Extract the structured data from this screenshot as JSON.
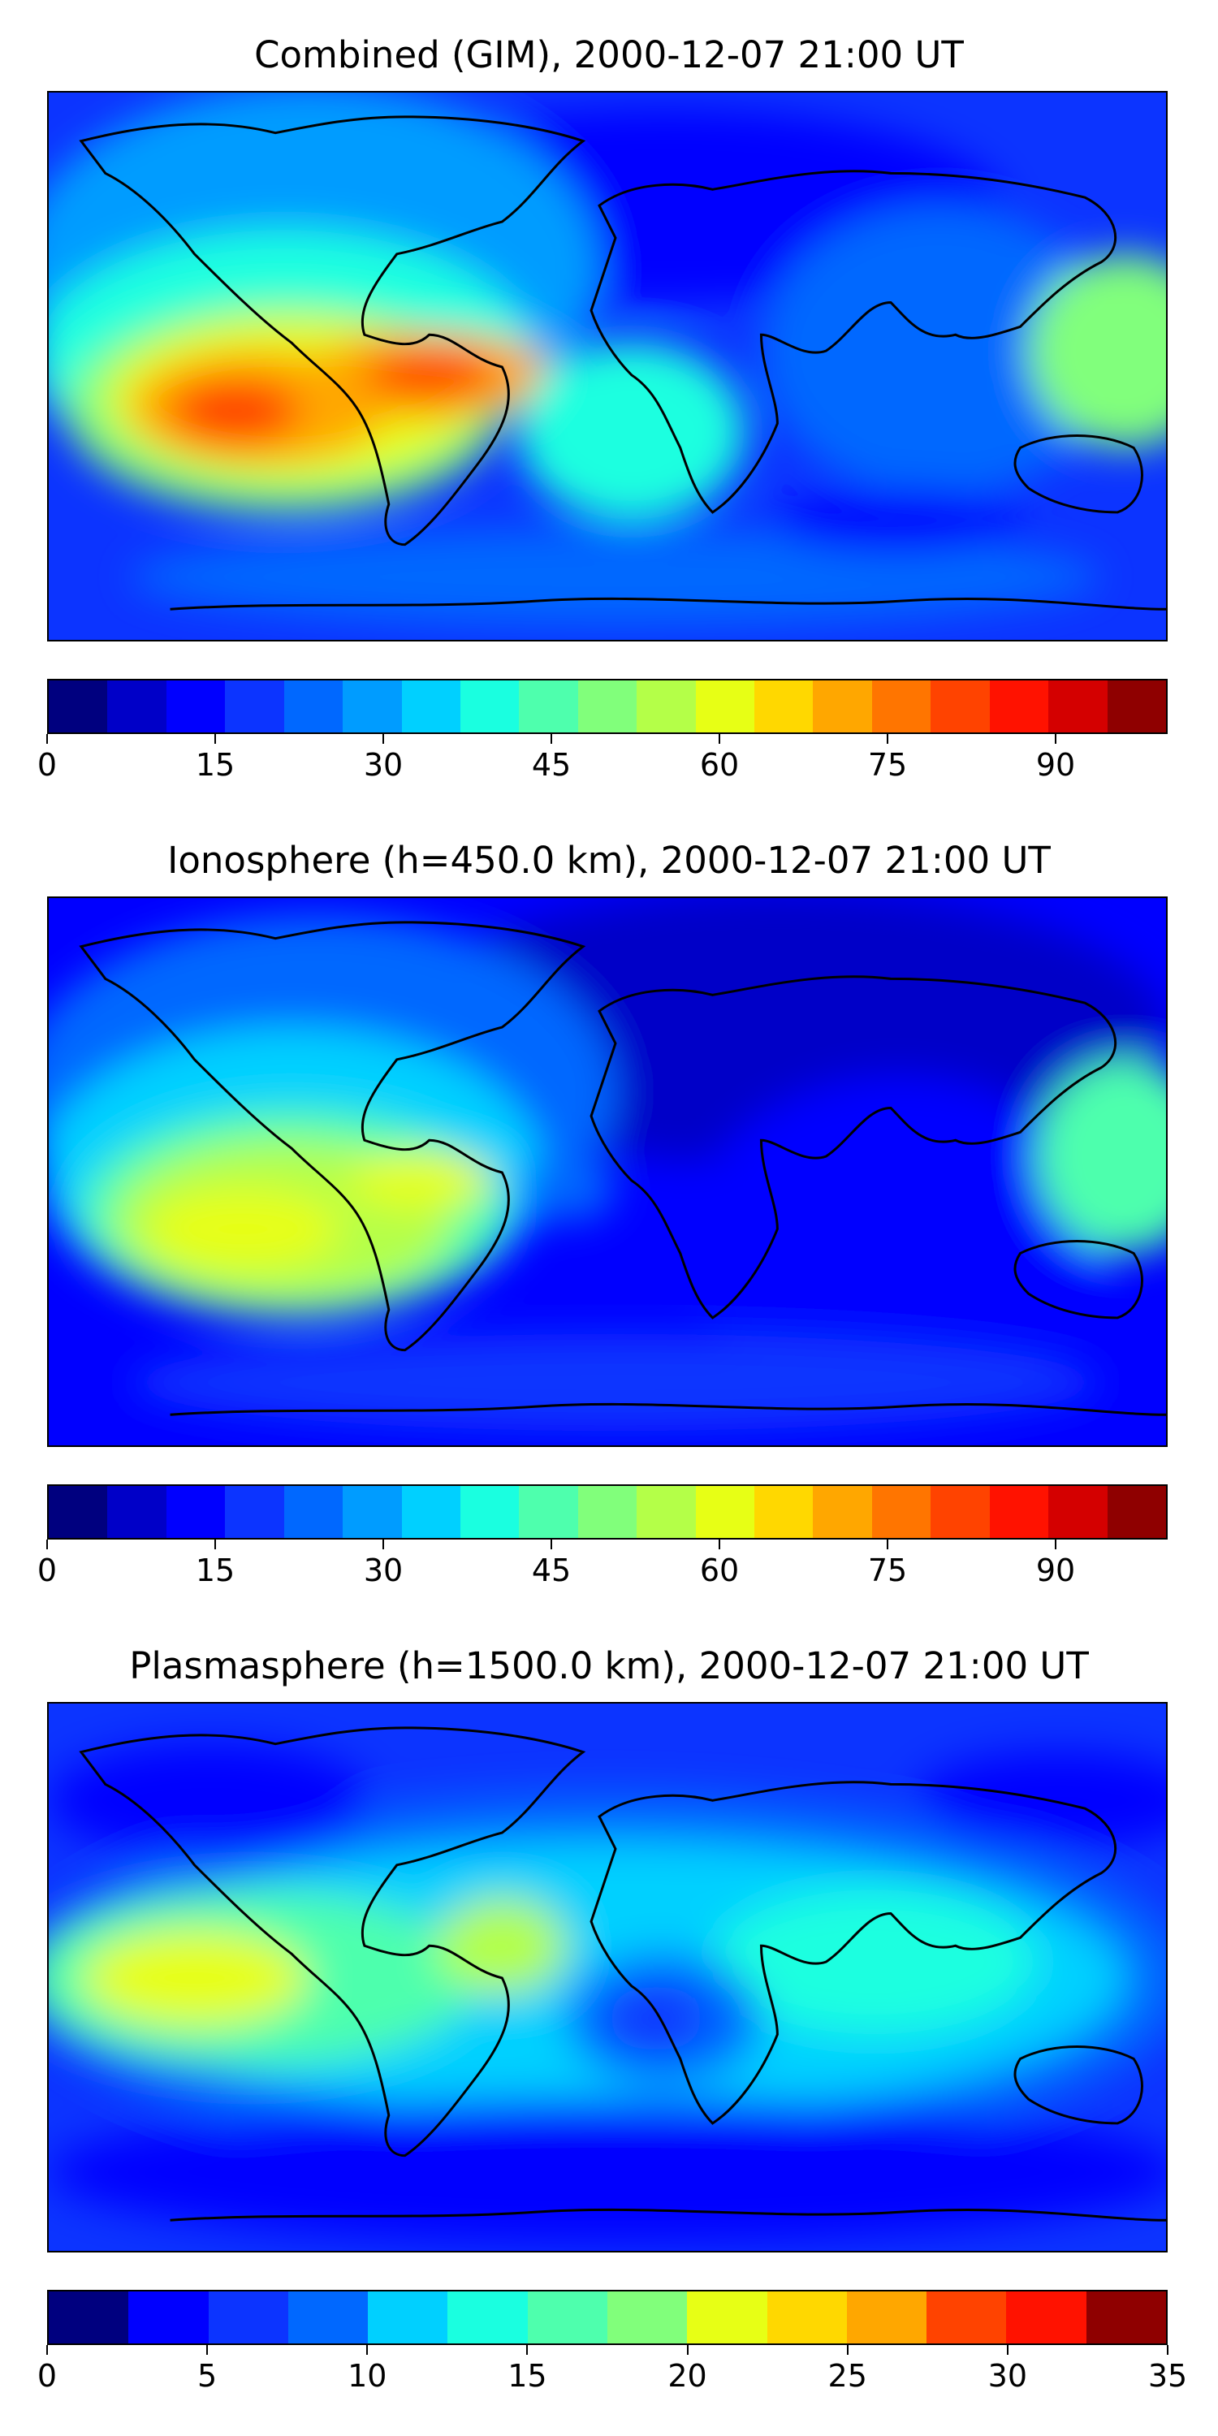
{
  "panels": [
    {
      "title": "Combined (GIM), 2000-12-07 21:00 UT",
      "colorbar": {
        "min": 0,
        "max": 100,
        "tick_labels": [
          "0",
          "15",
          "30",
          "45",
          "60",
          "75",
          "90"
        ],
        "colors": [
          "#00007f",
          "#0000c8",
          "#0000ff",
          "#0c34ff",
          "#0068ff",
          "#009cff",
          "#00d0ff",
          "#1affe0",
          "#4effad",
          "#81ff7b",
          "#b4ff48",
          "#e7ff15",
          "#ffd800",
          "#ffa700",
          "#ff7500",
          "#ff4300",
          "#ff1200",
          "#d40000",
          "#8f0000"
        ]
      }
    },
    {
      "title": "Ionosphere  (h=450.0 km), 2000-12-07 21:00 UT",
      "colorbar": {
        "min": 0,
        "max": 100,
        "tick_labels": [
          "0",
          "15",
          "30",
          "45",
          "60",
          "75",
          "90"
        ],
        "colors": [
          "#00007f",
          "#0000c8",
          "#0000ff",
          "#0c34ff",
          "#0068ff",
          "#009cff",
          "#00d0ff",
          "#1affe0",
          "#4effad",
          "#81ff7b",
          "#b4ff48",
          "#e7ff15",
          "#ffd800",
          "#ffa700",
          "#ff7500",
          "#ff4300",
          "#ff1200",
          "#d40000",
          "#8f0000"
        ]
      }
    },
    {
      "title": "Plasmasphere (h=1500.0 km), 2000-12-07 21:00 UT",
      "colorbar": {
        "min": 0,
        "max": 35,
        "tick_labels": [
          "0",
          "5",
          "10",
          "15",
          "20",
          "25",
          "30",
          "35"
        ],
        "colors": [
          "#00007f",
          "#0000ff",
          "#0c34ff",
          "#0068ff",
          "#00d0ff",
          "#1affe0",
          "#4effad",
          "#81ff7b",
          "#e7ff15",
          "#ffd800",
          "#ffa700",
          "#ff4300",
          "#ff1200",
          "#8f0000"
        ]
      }
    }
  ]
}
